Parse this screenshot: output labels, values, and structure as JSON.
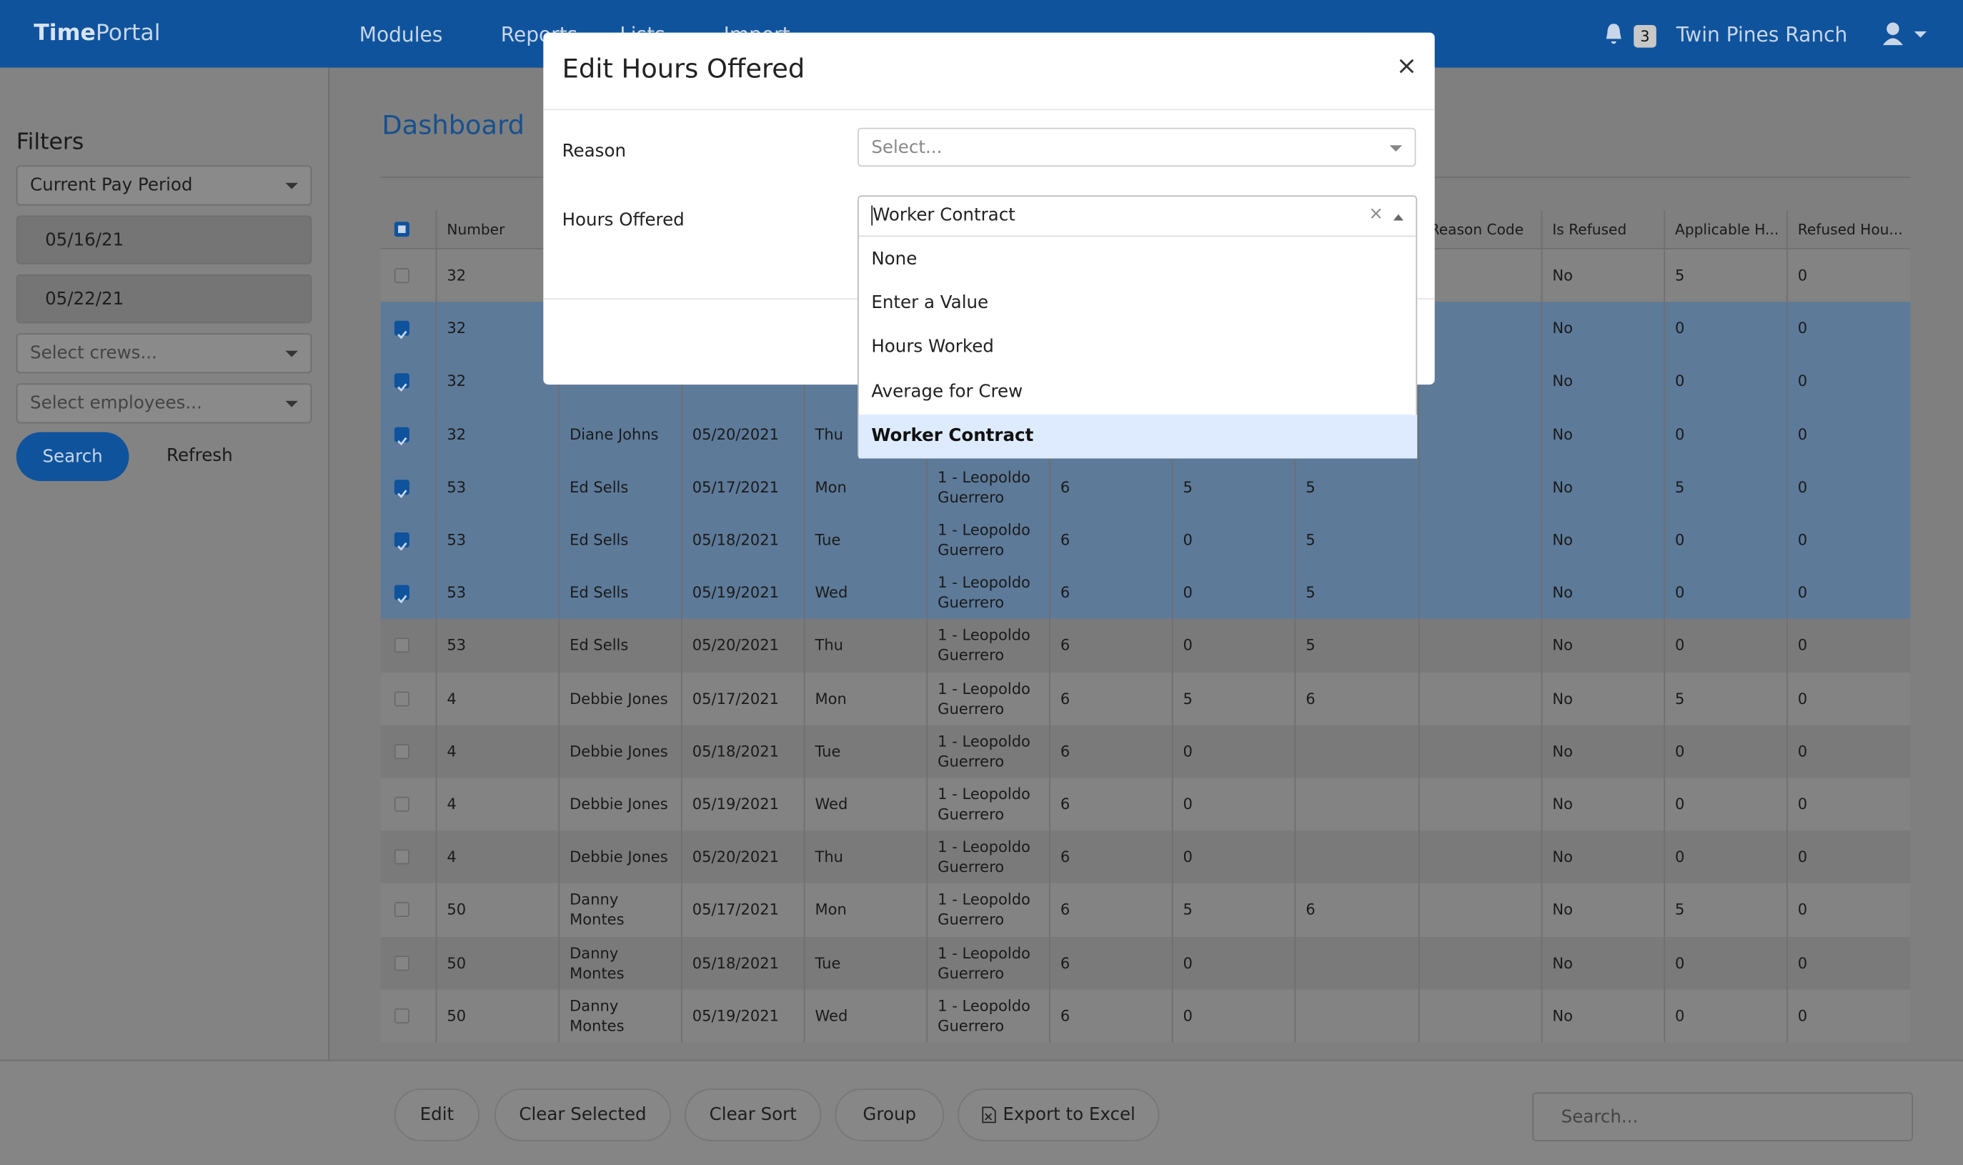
{
  "header": {
    "brand_bold": "Time",
    "brand_light": "Portal",
    "menus": [
      "Modules",
      "Reports",
      "Lists",
      "Import"
    ],
    "notification_count": 3,
    "organization": "Twin Pines Ranch"
  },
  "sidebar": {
    "title": "Filters",
    "period": "Current Pay Period",
    "start_date": "05/16/21",
    "end_date": "05/22/21",
    "crews_placeholder": "Select crews...",
    "employees_placeholder": "Select employees...",
    "search_button": "Search",
    "refresh_button": "Refresh"
  },
  "page": {
    "title": "Dashboard"
  },
  "table": {
    "columns": [
      "Number",
      null,
      null,
      null,
      null,
      null,
      null,
      null,
      "Reason Code",
      "Is Refused",
      "Applicable H...",
      "Refused Hou..."
    ],
    "rows": [
      [
        32,
        null,
        null,
        null,
        null,
        null,
        null,
        null,
        null,
        "No",
        5,
        0
      ],
      [
        32,
        null,
        null,
        null,
        null,
        null,
        null,
        null,
        null,
        "No",
        0,
        0
      ],
      [
        32,
        null,
        null,
        null,
        null,
        null,
        null,
        null,
        null,
        "No",
        0,
        0
      ],
      [
        32,
        "Diane Johns",
        "05/20/2021",
        "Thu",
        null,
        null,
        null,
        null,
        null,
        "No",
        0,
        0
      ],
      [
        53,
        "Ed Sells",
        "05/17/2021",
        "Mon",
        "1 - Leopoldo Guerrero",
        6,
        5,
        5,
        null,
        "No",
        5,
        0
      ],
      [
        53,
        "Ed Sells",
        "05/18/2021",
        "Tue",
        "1 - Leopoldo Guerrero",
        6,
        0,
        5,
        null,
        "No",
        0,
        0
      ],
      [
        53,
        "Ed Sells",
        "05/19/2021",
        "Wed",
        "1 - Leopoldo Guerrero",
        6,
        0,
        5,
        null,
        "No",
        0,
        0
      ],
      [
        53,
        "Ed Sells",
        "05/20/2021",
        "Thu",
        "1 - Leopoldo Guerrero",
        6,
        0,
        5,
        null,
        "No",
        0,
        0
      ],
      [
        4,
        "Debbie Jones",
        "05/17/2021",
        "Mon",
        "1 - Leopoldo Guerrero",
        6,
        5,
        6,
        null,
        "No",
        5,
        0
      ],
      [
        4,
        "Debbie Jones",
        "05/18/2021",
        "Tue",
        "1 - Leopoldo Guerrero",
        6,
        0,
        null,
        null,
        "No",
        0,
        0
      ],
      [
        4,
        "Debbie Jones",
        "05/19/2021",
        "Wed",
        "1 - Leopoldo Guerrero",
        6,
        0,
        null,
        null,
        "No",
        0,
        0
      ],
      [
        4,
        "Debbie Jones",
        "05/20/2021",
        "Thu",
        "1 - Leopoldo Guerrero",
        6,
        0,
        null,
        null,
        "No",
        0,
        0
      ],
      [
        50,
        "Danny Montes",
        "05/17/2021",
        "Mon",
        "1 - Leopoldo Guerrero",
        6,
        5,
        6,
        null,
        "No",
        5,
        0
      ],
      [
        50,
        "Danny Montes",
        "05/18/2021",
        "Tue",
        "1 - Leopoldo Guerrero",
        6,
        0,
        null,
        null,
        "No",
        0,
        0
      ],
      [
        50,
        "Danny Montes",
        "05/19/2021",
        "Wed",
        "1 - Leopoldo Guerrero",
        6,
        0,
        null,
        null,
        "No",
        0,
        0
      ]
    ],
    "selected": [
      false,
      true,
      true,
      true,
      true,
      true,
      true,
      false,
      false,
      false,
      false,
      false,
      false,
      false,
      false
    ]
  },
  "toolbar": {
    "buttons": [
      "Edit",
      "Clear Selected",
      "Clear Sort",
      "Group",
      "Export to Excel"
    ],
    "search_placeholder": "Search..."
  },
  "modal": {
    "title": "Edit Hours Offered",
    "close": "×",
    "reason_label": "Reason",
    "reason_placeholder": "Select...",
    "hours_label": "Hours Offered",
    "hours_value": "Worker Contract",
    "clear": "×",
    "options": [
      "None",
      "Enter a Value",
      "Hours Worked",
      "Average for Crew",
      "Worker Contract"
    ],
    "highlighted_option": 4
  }
}
